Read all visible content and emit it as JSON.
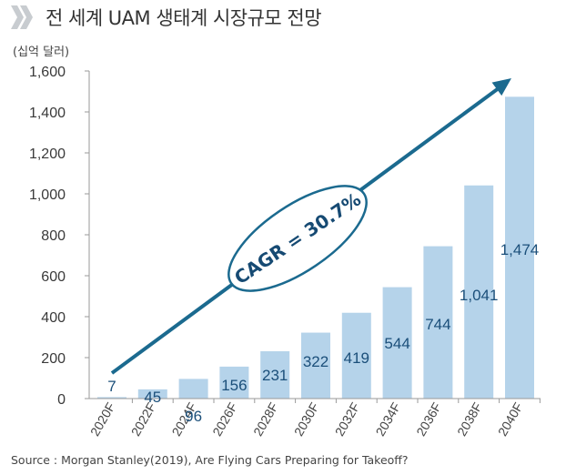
{
  "header": {
    "title": "전 세계 UAM 생태계 시장규모 전망",
    "unit": "(십억 달러)"
  },
  "source": "Source : Morgan Stanley(2019), Are Flying Cars Preparing for Takeoff?",
  "colors": {
    "bar": "#b5d3ea",
    "arrow": "#1b6a8f",
    "label": "#1b4f7a",
    "chevron": "#c8ccd0"
  },
  "chart_data": {
    "type": "bar",
    "categories": [
      "2020F",
      "2022F",
      "2024F",
      "2026F",
      "2028F",
      "2030F",
      "2032F",
      "2034F",
      "2036F",
      "2038F",
      "2040F"
    ],
    "values": [
      7,
      45,
      96,
      156,
      231,
      322,
      419,
      544,
      744,
      1041,
      1474
    ],
    "value_labels": [
      "7",
      "45",
      "96",
      "156",
      "231",
      "322",
      "419",
      "544",
      "744",
      "1,041",
      "1,474"
    ],
    "yticks": [
      "0",
      "200",
      "400",
      "600",
      "800",
      "1,000",
      "1,200",
      "1,400",
      "1,600"
    ],
    "ylim": [
      0,
      1600
    ],
    "annotation": "CAGR = 30.7%",
    "grid": false,
    "legend": "none"
  }
}
